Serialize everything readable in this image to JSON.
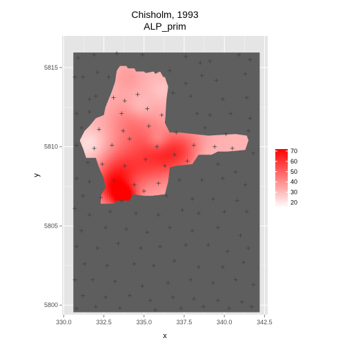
{
  "chart_data": {
    "type": "heatmap",
    "title": "Chisholm, 1993",
    "subtitle": "ALP_prim",
    "xlabel": "x",
    "ylabel": "y",
    "xlim": [
      329.9,
      342.7
    ],
    "ylim": [
      5799.4,
      5817.0
    ],
    "xticks": [
      330.0,
      332.5,
      335.0,
      337.5,
      340.0,
      342.5
    ],
    "xtick_labels": [
      "330.0",
      "332.5",
      "335.0",
      "337.5",
      "340.0",
      "342.5"
    ],
    "yticks": [
      5800,
      5805,
      5810,
      5815
    ],
    "ytick_labels": [
      "5800",
      "5805",
      "5810",
      "5815"
    ],
    "panel_background": "#e5e5e5",
    "grid": true,
    "grid_color": "#ffffff",
    "raster_extent": {
      "x": [
        330.6,
        342.2
      ],
      "y": [
        5799.55,
        5815.95
      ]
    },
    "raster_background": "#5e5e5e",
    "colorbar": {
      "min": 15,
      "max": 72,
      "ticks": [
        20,
        30,
        40,
        50,
        60,
        70
      ],
      "tick_labels": [
        "20",
        "30",
        "40",
        "50",
        "60",
        "70"
      ],
      "low_color": "#ffffff",
      "high_color": "#ff0000",
      "placement": "right"
    },
    "region_polygon": [
      [
        333.5,
        5815.1
      ],
      [
        333.9,
        5815.1
      ],
      [
        334.0,
        5814.95
      ],
      [
        334.4,
        5814.95
      ],
      [
        334.5,
        5814.75
      ],
      [
        335.0,
        5814.75
      ],
      [
        335.1,
        5814.65
      ],
      [
        335.6,
        5814.75
      ],
      [
        335.7,
        5814.6
      ],
      [
        336.0,
        5814.75
      ],
      [
        336.2,
        5814.4
      ],
      [
        336.3,
        5814.4
      ],
      [
        336.5,
        5813.8
      ],
      [
        336.4,
        5813.0
      ],
      [
        336.3,
        5811.5
      ],
      [
        336.6,
        5810.9
      ],
      [
        337.2,
        5810.9
      ],
      [
        339.0,
        5810.7
      ],
      [
        340.7,
        5810.8
      ],
      [
        341.4,
        5810.7
      ],
      [
        341.5,
        5810.4
      ],
      [
        341.3,
        5809.8
      ],
      [
        340.2,
        5809.7
      ],
      [
        339.6,
        5809.7
      ],
      [
        339.2,
        5809.5
      ],
      [
        338.4,
        5809.5
      ],
      [
        338.0,
        5808.9
      ],
      [
        337.0,
        5808.8
      ],
      [
        336.6,
        5808.7
      ],
      [
        336.5,
        5807.8
      ],
      [
        336.3,
        5807.0
      ],
      [
        335.5,
        5806.9
      ],
      [
        335.0,
        5806.9
      ],
      [
        334.3,
        5807.0
      ],
      [
        334.1,
        5806.6
      ],
      [
        333.3,
        5806.6
      ],
      [
        333.1,
        5806.4
      ],
      [
        332.3,
        5806.4
      ],
      [
        332.3,
        5806.9
      ],
      [
        332.6,
        5807.4
      ],
      [
        332.5,
        5808.0
      ],
      [
        332.2,
        5808.7
      ],
      [
        332.0,
        5809.3
      ],
      [
        331.4,
        5809.3
      ],
      [
        331.2,
        5809.9
      ],
      [
        331.0,
        5810.4
      ],
      [
        331.3,
        5811.0
      ],
      [
        331.6,
        5811.3
      ],
      [
        332.0,
        5811.8
      ],
      [
        332.5,
        5812.0
      ],
      [
        332.6,
        5812.5
      ],
      [
        333.0,
        5813.5
      ],
      [
        333.2,
        5814.1
      ],
      [
        333.3,
        5814.8
      ]
    ],
    "hotspots": [
      {
        "x": 333.8,
        "y": 5806.8,
        "value": 70,
        "sigma": 0.5
      },
      {
        "x": 333.0,
        "y": 5807.4,
        "value": 58,
        "sigma": 0.8
      },
      {
        "x": 335.0,
        "y": 5809.2,
        "value": 52,
        "sigma": 1.3
      },
      {
        "x": 336.6,
        "y": 5809.6,
        "value": 50,
        "sigma": 1.0
      },
      {
        "x": 333.4,
        "y": 5808.5,
        "value": 48,
        "sigma": 0.9
      },
      {
        "x": 334.2,
        "y": 5811.6,
        "value": 43,
        "sigma": 1.0
      },
      {
        "x": 337.8,
        "y": 5809.8,
        "value": 44,
        "sigma": 0.9
      },
      {
        "x": 334.0,
        "y": 5814.4,
        "value": 37,
        "sigma": 0.6
      }
    ],
    "coldspots": [
      {
        "x": 335.9,
        "y": 5810.4,
        "value": 22,
        "sigma": 0.45
      },
      {
        "x": 334.7,
        "y": 5812.5,
        "value": 25,
        "sigma": 0.55
      },
      {
        "x": 331.6,
        "y": 5810.2,
        "value": 22,
        "sigma": 0.7
      },
      {
        "x": 335.0,
        "y": 5808.5,
        "value": 33,
        "sigma": 0.4
      },
      {
        "x": 338.6,
        "y": 5809.5,
        "value": 26,
        "sigma": 0.6
      },
      {
        "x": 336.1,
        "y": 5813.6,
        "value": 28,
        "sigma": 0.5
      }
    ],
    "base_value": 32,
    "points": [
      [
        330.9,
        5815.6
      ],
      [
        331.9,
        5815.8
      ],
      [
        333.3,
        5815.9
      ],
      [
        334.9,
        5815.8
      ],
      [
        337.6,
        5815.7
      ],
      [
        338.5,
        5815.3
      ],
      [
        339.1,
        5815.4
      ],
      [
        340.9,
        5815.8
      ],
      [
        341.6,
        5815.5
      ],
      [
        330.7,
        5814.4
      ],
      [
        331.2,
        5814.4
      ],
      [
        332.1,
        5814.7
      ],
      [
        332.8,
        5814.4
      ],
      [
        336.6,
        5814.8
      ],
      [
        337.6,
        5814.0
      ],
      [
        338.6,
        5814.5
      ],
      [
        339.5,
        5814.2
      ],
      [
        341.3,
        5814.6
      ],
      [
        331.6,
        5813.0
      ],
      [
        332.0,
        5813.2
      ],
      [
        333.1,
        5813.1
      ],
      [
        333.8,
        5812.9
      ],
      [
        334.6,
        5813.3
      ],
      [
        336.8,
        5813.4
      ],
      [
        337.9,
        5813.2
      ],
      [
        339.9,
        5813.0
      ],
      [
        341.4,
        5813.1
      ],
      [
        330.8,
        5812.1
      ],
      [
        331.6,
        5812.2
      ],
      [
        333.6,
        5812.1
      ],
      [
        335.2,
        5812.4
      ],
      [
        336.1,
        5812.0
      ],
      [
        338.3,
        5812.1
      ],
      [
        339.1,
        5812.0
      ],
      [
        340.4,
        5812.1
      ],
      [
        341.6,
        5811.8
      ],
      [
        331.1,
        5811.2
      ],
      [
        332.2,
        5811.1
      ],
      [
        333.7,
        5811.0
      ],
      [
        335.3,
        5811.3
      ],
      [
        337.0,
        5810.9
      ],
      [
        338.8,
        5811.2
      ],
      [
        340.1,
        5810.8
      ],
      [
        341.5,
        5811.0
      ],
      [
        330.8,
        5810.1
      ],
      [
        331.9,
        5809.9
      ],
      [
        333.0,
        5810.1
      ],
      [
        334.1,
        5810.5
      ],
      [
        335.8,
        5810.0
      ],
      [
        336.9,
        5809.5
      ],
      [
        338.1,
        5810.1
      ],
      [
        339.4,
        5810.0
      ],
      [
        340.5,
        5809.9
      ],
      [
        341.8,
        5809.6
      ],
      [
        331.5,
        5809.0
      ],
      [
        332.4,
        5808.9
      ],
      [
        333.8,
        5808.8
      ],
      [
        335.1,
        5809.2
      ],
      [
        336.3,
        5808.8
      ],
      [
        337.7,
        5809.1
      ],
      [
        339.6,
        5808.9
      ],
      [
        340.7,
        5808.4
      ],
      [
        330.8,
        5808.0
      ],
      [
        331.6,
        5807.8
      ],
      [
        333.1,
        5807.9
      ],
      [
        334.4,
        5807.6
      ],
      [
        335.9,
        5807.7
      ],
      [
        337.2,
        5807.9
      ],
      [
        338.6,
        5807.9
      ],
      [
        339.9,
        5808.0
      ],
      [
        341.3,
        5807.6
      ],
      [
        331.2,
        5806.9
      ],
      [
        332.3,
        5806.8
      ],
      [
        333.6,
        5806.6
      ],
      [
        335.0,
        5807.2
      ],
      [
        336.4,
        5806.9
      ],
      [
        338.0,
        5806.7
      ],
      [
        339.3,
        5806.7
      ],
      [
        340.8,
        5806.6
      ],
      [
        330.7,
        5806.1
      ],
      [
        331.6,
        5805.7
      ],
      [
        332.9,
        5805.9
      ],
      [
        334.5,
        5805.8
      ],
      [
        335.9,
        5805.7
      ],
      [
        337.4,
        5806.0
      ],
      [
        338.4,
        5805.8
      ],
      [
        340.0,
        5805.9
      ],
      [
        341.4,
        5805.9
      ],
      [
        331.1,
        5804.7
      ],
      [
        332.6,
        5804.9
      ],
      [
        333.9,
        5804.8
      ],
      [
        335.2,
        5804.6
      ],
      [
        336.6,
        5804.9
      ],
      [
        338.0,
        5804.7
      ],
      [
        339.6,
        5804.9
      ],
      [
        341.0,
        5804.4
      ],
      [
        330.8,
        5803.7
      ],
      [
        332.1,
        5803.6
      ],
      [
        333.4,
        5803.9
      ],
      [
        334.8,
        5803.6
      ],
      [
        336.0,
        5803.7
      ],
      [
        337.6,
        5803.8
      ],
      [
        339.0,
        5803.8
      ],
      [
        340.2,
        5803.4
      ],
      [
        341.5,
        5803.6
      ],
      [
        331.3,
        5802.6
      ],
      [
        332.7,
        5802.5
      ],
      [
        334.4,
        5802.6
      ],
      [
        335.6,
        5802.5
      ],
      [
        336.9,
        5802.8
      ],
      [
        338.4,
        5802.4
      ],
      [
        339.9,
        5802.4
      ],
      [
        341.2,
        5802.7
      ],
      [
        330.7,
        5801.6
      ],
      [
        331.8,
        5801.6
      ],
      [
        333.2,
        5801.5
      ],
      [
        334.9,
        5801.2
      ],
      [
        336.5,
        5801.4
      ],
      [
        337.9,
        5801.6
      ],
      [
        339.3,
        5801.4
      ],
      [
        340.7,
        5801.6
      ],
      [
        341.8,
        5801.3
      ],
      [
        331.2,
        5800.6
      ],
      [
        332.6,
        5800.5
      ],
      [
        334.1,
        5800.6
      ],
      [
        335.4,
        5800.3
      ],
      [
        336.8,
        5800.5
      ],
      [
        338.1,
        5800.4
      ],
      [
        339.6,
        5800.3
      ],
      [
        341.1,
        5800.2
      ],
      [
        330.8,
        5799.8
      ],
      [
        332.0,
        5799.9
      ],
      [
        333.5,
        5799.8
      ],
      [
        335.7,
        5799.7
      ],
      [
        337.3,
        5799.8
      ],
      [
        338.7,
        5799.9
      ],
      [
        340.3,
        5799.8
      ],
      [
        341.7,
        5799.9
      ]
    ]
  }
}
